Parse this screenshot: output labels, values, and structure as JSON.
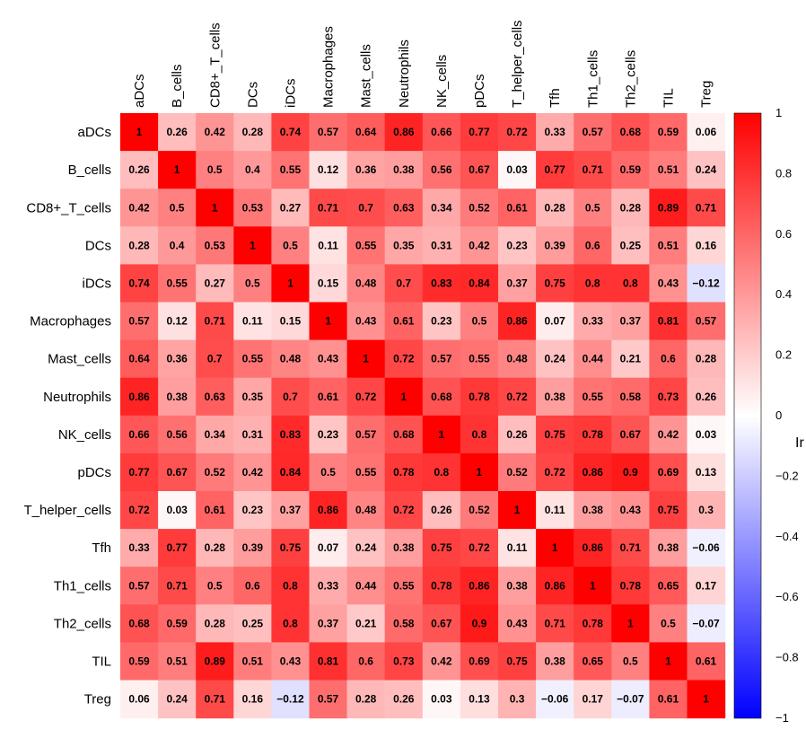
{
  "chart_data": {
    "type": "heatmap",
    "title": "",
    "categories": [
      "aDCs",
      "B_cells",
      "CD8+_T_cells",
      "DCs",
      "iDCs",
      "Macrophages",
      "Mast_cells",
      "Neutrophils",
      "NK_cells",
      "pDCs",
      "T_helper_cells",
      "Tfh",
      "Th1_cells",
      "Th2_cells",
      "TIL",
      "Treg"
    ],
    "values": [
      [
        1,
        0.26,
        0.42,
        0.28,
        0.74,
        0.57,
        0.64,
        0.86,
        0.66,
        0.77,
        0.72,
        0.33,
        0.57,
        0.68,
        0.59,
        0.06
      ],
      [
        0.26,
        1,
        0.5,
        0.4,
        0.55,
        0.12,
        0.36,
        0.38,
        0.56,
        0.67,
        0.03,
        0.77,
        0.71,
        0.59,
        0.51,
        0.24
      ],
      [
        0.42,
        0.5,
        1,
        0.53,
        0.27,
        0.71,
        0.7,
        0.63,
        0.34,
        0.52,
        0.61,
        0.28,
        0.5,
        0.28,
        0.89,
        0.71
      ],
      [
        0.28,
        0.4,
        0.53,
        1,
        0.5,
        0.11,
        0.55,
        0.35,
        0.31,
        0.42,
        0.23,
        0.39,
        0.6,
        0.25,
        0.51,
        0.16
      ],
      [
        0.74,
        0.55,
        0.27,
        0.5,
        1,
        0.15,
        0.48,
        0.7,
        0.83,
        0.84,
        0.37,
        0.75,
        0.8,
        0.8,
        0.43,
        -0.12
      ],
      [
        0.57,
        0.12,
        0.71,
        0.11,
        0.15,
        1,
        0.43,
        0.61,
        0.23,
        0.5,
        0.86,
        0.07,
        0.33,
        0.37,
        0.81,
        0.57
      ],
      [
        0.64,
        0.36,
        0.7,
        0.55,
        0.48,
        0.43,
        1,
        0.72,
        0.57,
        0.55,
        0.48,
        0.24,
        0.44,
        0.21,
        0.6,
        0.28
      ],
      [
        0.86,
        0.38,
        0.63,
        0.35,
        0.7,
        0.61,
        0.72,
        1,
        0.68,
        0.78,
        0.72,
        0.38,
        0.55,
        0.58,
        0.73,
        0.26
      ],
      [
        0.66,
        0.56,
        0.34,
        0.31,
        0.83,
        0.23,
        0.57,
        0.68,
        1,
        0.8,
        0.26,
        0.75,
        0.78,
        0.67,
        0.42,
        0.03
      ],
      [
        0.77,
        0.67,
        0.52,
        0.42,
        0.84,
        0.5,
        0.55,
        0.78,
        0.8,
        1,
        0.52,
        0.72,
        0.86,
        0.9,
        0.69,
        0.13
      ],
      [
        0.72,
        0.03,
        0.61,
        0.23,
        0.37,
        0.86,
        0.48,
        0.72,
        0.26,
        0.52,
        1,
        0.11,
        0.38,
        0.43,
        0.75,
        0.3
      ],
      [
        0.33,
        0.77,
        0.28,
        0.39,
        0.75,
        0.07,
        0.24,
        0.38,
        0.75,
        0.72,
        0.11,
        1,
        0.86,
        0.71,
        0.38,
        -0.06
      ],
      [
        0.57,
        0.71,
        0.5,
        0.6,
        0.8,
        0.33,
        0.44,
        0.55,
        0.78,
        0.86,
        0.38,
        0.86,
        1,
        0.78,
        0.65,
        0.17
      ],
      [
        0.68,
        0.59,
        0.28,
        0.25,
        0.8,
        0.37,
        0.21,
        0.58,
        0.67,
        0.9,
        0.43,
        0.71,
        0.78,
        1,
        0.5,
        -0.07
      ],
      [
        0.59,
        0.51,
        0.89,
        0.51,
        0.43,
        0.81,
        0.6,
        0.73,
        0.42,
        0.69,
        0.75,
        0.38,
        0.65,
        0.5,
        1,
        0.61
      ],
      [
        0.06,
        0.24,
        0.71,
        0.16,
        -0.12,
        0.57,
        0.28,
        0.26,
        0.03,
        0.13,
        0.3,
        -0.06,
        0.17,
        -0.07,
        0.61,
        1
      ]
    ],
    "colorbar": {
      "range": [
        -1,
        1
      ],
      "ticks": [
        "1",
        "0.8",
        "0.6",
        "0.4",
        "0.2",
        "0",
        "−0.2",
        "−0.4",
        "−0.6",
        "−0.8",
        "−1"
      ],
      "label": "Ir",
      "colors": {
        "low": "#0000ff",
        "mid": "#ffffff",
        "high": "#ff0000"
      }
    }
  }
}
